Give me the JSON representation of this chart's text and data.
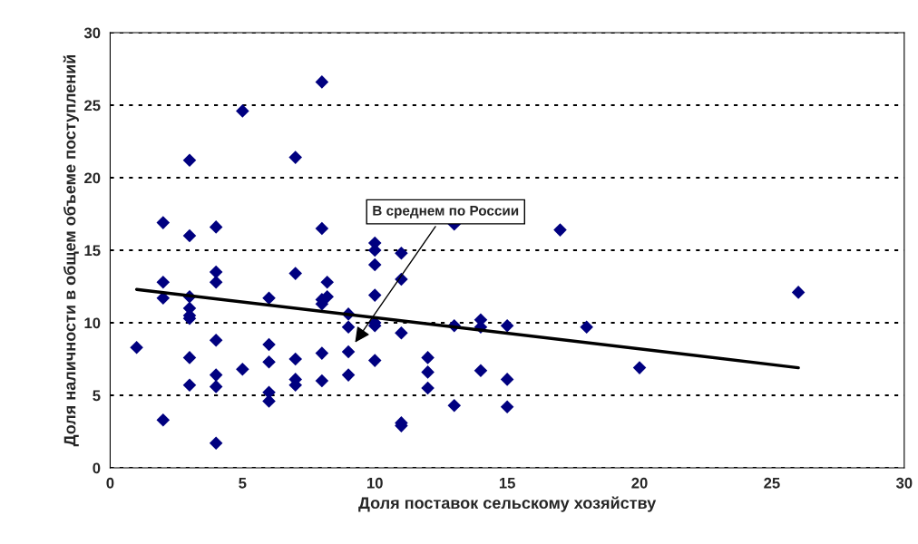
{
  "chart_data": {
    "type": "scatter",
    "xlabel": "Доля поставок сельскому хозяйству",
    "ylabel": "Доля наличности в общем объеме поступлений",
    "xlim": [
      0,
      30
    ],
    "xticks": [
      0,
      5,
      10,
      15,
      20,
      25,
      30
    ],
    "ylim": [
      0,
      30
    ],
    "yticks": [
      0,
      5,
      10,
      15,
      20,
      25,
      30
    ],
    "grid": "y",
    "marker": "diamond",
    "series": [
      {
        "color": "#000080",
        "x": [
          1,
          2,
          2,
          2,
          2,
          3,
          3,
          3,
          3,
          3,
          3,
          3,
          3,
          4,
          4,
          4,
          4,
          4,
          4,
          4,
          5,
          5,
          6,
          6,
          6,
          6,
          6,
          7,
          7,
          7,
          7,
          7,
          8,
          8,
          8,
          8,
          8,
          8,
          8.2,
          8.2,
          9,
          9,
          9,
          9,
          10,
          10,
          10,
          10,
          10,
          10,
          10,
          11,
          11,
          11,
          11,
          11,
          12,
          12,
          12,
          13,
          13,
          13,
          14,
          14,
          14,
          15,
          15,
          15,
          17,
          18,
          20,
          26
        ],
        "values": [
          8.3,
          16.9,
          12.8,
          11.7,
          3.3,
          21.2,
          16.0,
          11.8,
          11.0,
          10.5,
          10.3,
          7.6,
          5.7,
          16.6,
          13.5,
          12.8,
          8.8,
          6.4,
          5.6,
          1.7,
          24.6,
          6.8,
          11.7,
          8.5,
          7.3,
          5.2,
          4.6,
          21.4,
          13.4,
          7.5,
          6.1,
          5.7,
          26.6,
          16.5,
          11.3,
          11.6,
          7.9,
          6.0,
          12.8,
          11.8,
          10.6,
          9.7,
          8.0,
          6.4,
          15.5,
          15.0,
          14.0,
          11.9,
          10.0,
          9.8,
          7.4,
          14.8,
          13.0,
          9.3,
          3.1,
          2.9,
          7.6,
          6.6,
          5.5,
          16.8,
          9.8,
          4.3,
          10.2,
          9.7,
          6.7,
          9.8,
          6.1,
          4.2,
          16.4,
          9.7,
          6.9,
          12.1
        ]
      },
      {
        "type": "line",
        "color": "#000000",
        "marker": "none",
        "x": [
          1,
          26
        ],
        "values": [
          12.3,
          6.9
        ]
      }
    ],
    "annotations": [
      {
        "text": "В среднем по России",
        "x": 9.2,
        "y": 8.5
      }
    ]
  }
}
